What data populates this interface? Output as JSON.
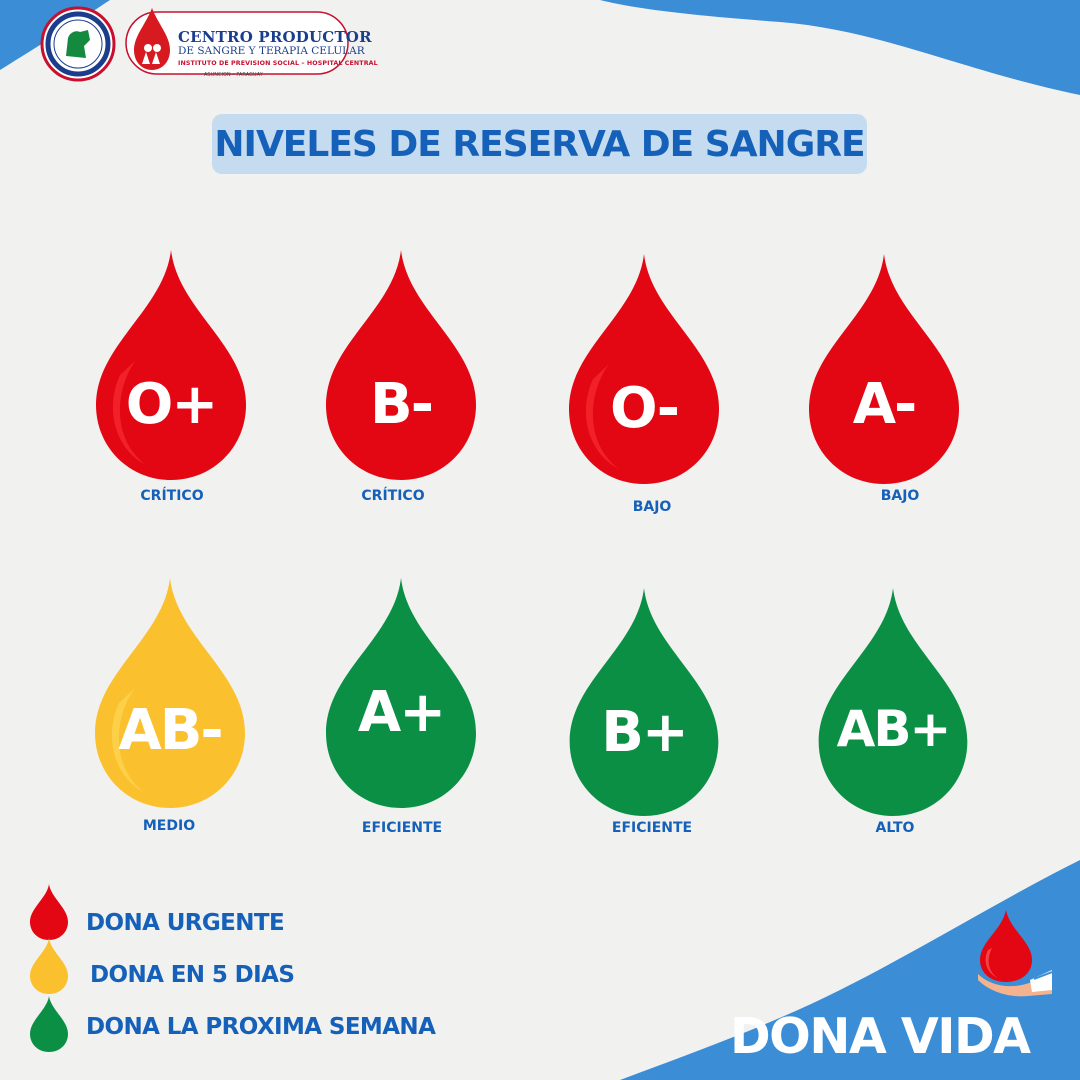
{
  "logos": {
    "center_name_line1": "CENTRO PRODUCTOR",
    "center_name_line2": "DE SANGRE Y TERAPIA CELULAR",
    "institute_line": "INSTITUTO DE PREVISION SOCIAL – HOSPITAL CENTRAL",
    "location_line": "ASUNCION – PARAGUAY"
  },
  "title": "NIVELES DE RESERVA DE SANGRE",
  "colors": {
    "background": "#f1f1f0",
    "accent_blue": "#1560b8",
    "wave_blue": "#3b8dd6",
    "title_box": "#c5dcf0",
    "urgent_red": "#e30613",
    "medium_yellow": "#fbc02d",
    "ok_green": "#0a8f45"
  },
  "blood_types": [
    {
      "type": "O+",
      "status": "CRÍTICO",
      "color": "red"
    },
    {
      "type": "B-",
      "status": "CRÍTICO",
      "color": "red"
    },
    {
      "type": "O-",
      "status": "BAJO",
      "color": "red"
    },
    {
      "type": "A-",
      "status": "BAJO",
      "color": "red"
    },
    {
      "type": "AB-",
      "status": "MEDIO",
      "color": "yellow"
    },
    {
      "type": "A+",
      "status": "EFICIENTE",
      "color": "green"
    },
    {
      "type": "B+",
      "status": "EFICIENTE",
      "color": "green"
    },
    {
      "type": "AB+",
      "status": "ALTO",
      "color": "green"
    }
  ],
  "legend": [
    {
      "label": "DONA URGENTE",
      "color": "red"
    },
    {
      "label": "DONA EN 5 DIAS",
      "color": "yellow"
    },
    {
      "label": "DONA LA PROXIMA SEMANA",
      "color": "green"
    }
  ],
  "tagline": "DONA VIDA",
  "icons": [
    "seal-logo-icon",
    "blood-drop-logo-icon",
    "hand-holding-drop-icon"
  ]
}
